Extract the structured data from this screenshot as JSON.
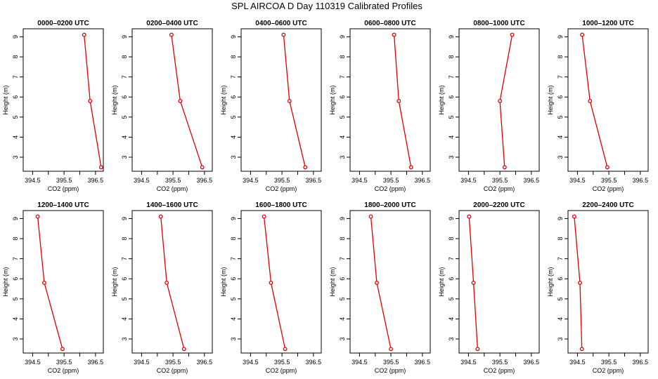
{
  "chart_data": {
    "type": "line",
    "title": "SPL AIRCOA D  Day 110319  Calibrated Profiles",
    "xlabel": "CO2 (ppm)",
    "ylabel": "Height (m)",
    "xlim": [
      394.2,
      396.75
    ],
    "ylim": [
      2.3,
      9.4
    ],
    "x_ticks": [
      "394.5",
      "395.5",
      "396.5"
    ],
    "x_minor_ticks": [
      395.0,
      396.0
    ],
    "y_ticks": [
      "3",
      "4",
      "5",
      "6",
      "7",
      "8",
      "9"
    ],
    "heights": [
      9.1,
      5.8,
      2.5
    ],
    "line_color": "#dd0000",
    "panels": [
      {
        "label": "0000–0200 UTC",
        "co2": [
          396.14,
          396.33,
          396.68
        ]
      },
      {
        "label": "0200–0400 UTC",
        "co2": [
          395.45,
          395.73,
          396.43
        ]
      },
      {
        "label": "0400–0600 UTC",
        "co2": [
          395.55,
          395.74,
          396.24
        ]
      },
      {
        "label": "0600–0800 UTC",
        "co2": [
          395.6,
          395.75,
          396.14
        ]
      },
      {
        "label": "0800–1000 UTC",
        "co2": [
          395.89,
          395.5,
          395.65
        ]
      },
      {
        "label": "1000–1200 UTC",
        "co2": [
          394.65,
          394.9,
          395.45
        ]
      },
      {
        "label": "1200–1400 UTC",
        "co2": [
          394.66,
          394.87,
          395.45
        ]
      },
      {
        "label": "1400–1600 UTC",
        "co2": [
          395.11,
          395.3,
          395.85
        ]
      },
      {
        "label": "1600–1800 UTC",
        "co2": [
          394.93,
          395.15,
          395.6
        ]
      },
      {
        "label": "1800–2000 UTC",
        "co2": [
          394.86,
          395.05,
          395.5
        ]
      },
      {
        "label": "2000–2200 UTC",
        "co2": [
          394.52,
          394.66,
          394.79
        ]
      },
      {
        "label": "2200–2400 UTC",
        "co2": [
          394.4,
          394.58,
          394.64
        ]
      }
    ]
  }
}
